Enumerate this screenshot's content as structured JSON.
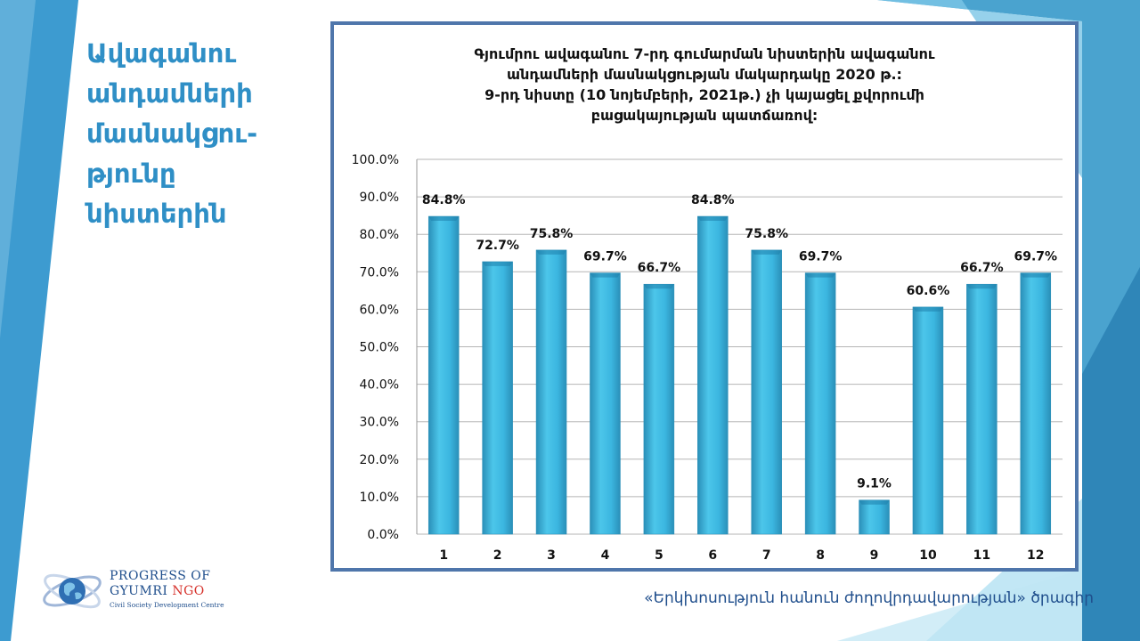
{
  "slide": {
    "title": "Ավագանու\nանդամների\nմասնակցու-\nթյունը\nնիստերին",
    "footer": "«Երկխոսություն հանուն ժողովրդավարության» ծրագիր"
  },
  "logo": {
    "line1": "PROGRESS OF",
    "line2_main": "GYUMRI",
    "line2_accent": "NGO",
    "line3": "Civil Society Development Centre",
    "icon": "globe-orbit-icon"
  },
  "colors": {
    "bar": "#3bb6e0",
    "bar_dark": "#2a8fb8",
    "frame": "#4f76ab",
    "accent": "#2f8fc6"
  },
  "chart_data": {
    "type": "bar",
    "title_lines": [
      "Գյումրու ավագանու 7-րդ գումարման նիստերին ավագանու",
      "անդամների մասնակցության մակարդակը 2020 թ.:",
      "9-րդ նիստը (10 նոյեմբերի, 2021թ.) չի կայացել քվորումի",
      "բացակայության պատճառով:"
    ],
    "categories": [
      "1",
      "2",
      "3",
      "4",
      "5",
      "6",
      "7",
      "8",
      "9",
      "10",
      "11",
      "12"
    ],
    "values": [
      84.8,
      72.7,
      75.8,
      69.7,
      66.7,
      84.8,
      75.8,
      69.7,
      9.1,
      60.6,
      66.7,
      69.7
    ],
    "value_labels": [
      "84.8%",
      "72.7%",
      "75.8%",
      "69.7%",
      "66.7%",
      "84.8%",
      "75.8%",
      "69.7%",
      "9.1%",
      "60.6%",
      "66.7%",
      "69.7%"
    ],
    "y_ticks": [
      "0.0%",
      "10.0%",
      "20.0%",
      "30.0%",
      "40.0%",
      "50.0%",
      "60.0%",
      "70.0%",
      "80.0%",
      "90.0%",
      "100.0%"
    ],
    "ylim": [
      0,
      100
    ],
    "grid": true,
    "legend": "none"
  }
}
